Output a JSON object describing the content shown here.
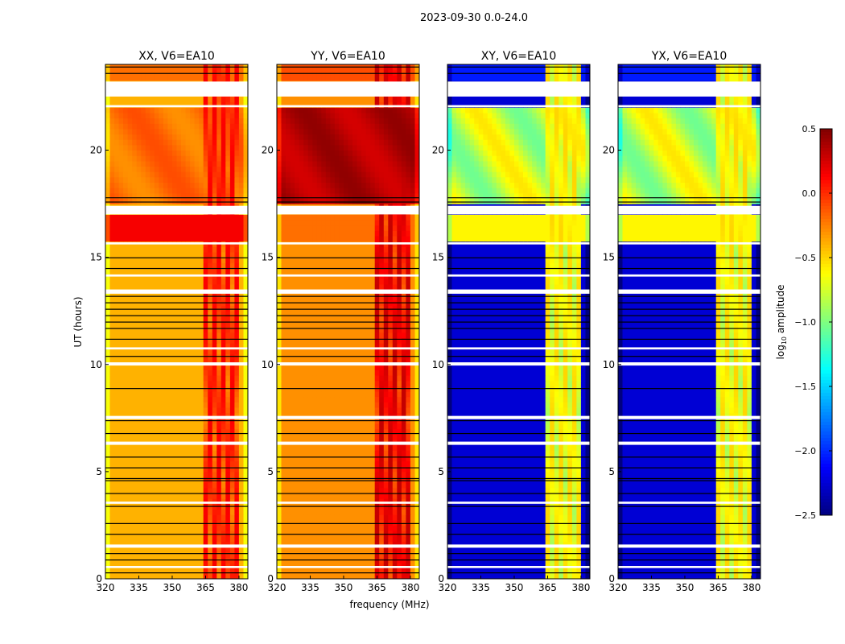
{
  "chart_data": {
    "type": "heatmap",
    "title": "2023-09-30 0.0-24.0",
    "xlabel": "frequency (MHz)",
    "ylabel": "UT (hours)",
    "xlim": [
      320,
      384
    ],
    "ylim": [
      0,
      24
    ],
    "xticks": [
      "320",
      "335",
      "350",
      "365",
      "380"
    ],
    "yticks": [
      "0",
      "5",
      "10",
      "15",
      "20"
    ],
    "colorbar": {
      "label_main": "log",
      "label_sub": "10",
      "label_rest": " amplitude",
      "range": [
        -2.5,
        0.5
      ],
      "ticks": [
        "0.5",
        "0.0",
        "−0.5",
        "−1.0",
        "−1.5",
        "−2.0",
        "−2.5"
      ],
      "colormap": "jet"
    },
    "flagged_hours_white": [
      [
        0.5,
        0.6
      ],
      [
        1.45,
        1.6
      ],
      [
        3.5,
        3.6
      ],
      [
        6.25,
        6.4
      ],
      [
        7.45,
        7.6
      ],
      [
        9.95,
        10.1
      ],
      [
        10.7,
        10.8
      ],
      [
        13.3,
        13.5
      ],
      [
        14.1,
        14.2
      ],
      [
        15.6,
        15.7
      ],
      [
        17.0,
        17.4
      ],
      [
        22.0,
        22.1
      ],
      [
        22.5,
        23.2
      ]
    ],
    "flagged_hours_black": [
      0.3,
      0.9,
      1.2,
      2.1,
      2.6,
      3.4,
      4.0,
      4.6,
      4.7,
      5.2,
      5.7,
      6.8,
      7.4,
      8.9,
      10.4,
      11.2,
      11.7,
      12.0,
      12.3,
      12.6,
      12.9,
      13.2,
      14.5,
      15.0,
      17.6,
      17.8,
      23.6,
      23.9
    ],
    "rfi_band_mhz": [
      363,
      380
    ],
    "panels": [
      {
        "title": "XX, V6=EA10",
        "base": -0.4,
        "band": 0.1,
        "day_segment": {
          "from": 15.7,
          "to": 17.0,
          "value": 0.15
        },
        "night_segment": {
          "from": 17.5,
          "to": 22.0,
          "value": -0.2
        }
      },
      {
        "title": "YY, V6=EA10",
        "base": -0.3,
        "band": 0.15,
        "day_segment": {
          "from": 15.7,
          "to": 17.0,
          "value": -0.2
        },
        "night_segment": {
          "from": 17.5,
          "to": 22.0,
          "value": 0.35
        }
      },
      {
        "title": "XY, V6=EA10",
        "base": -2.25,
        "band": -0.9,
        "day_segment": {
          "from": 15.7,
          "to": 17.0,
          "value": -0.6
        },
        "night_segment": {
          "from": 17.5,
          "to": 22.0,
          "value": -0.8
        }
      },
      {
        "title": "YX, V6=EA10",
        "base": -2.25,
        "band": -0.9,
        "day_segment": {
          "from": 15.7,
          "to": 17.0,
          "value": -0.6
        },
        "night_segment": {
          "from": 17.5,
          "to": 22.0,
          "value": -0.8
        }
      }
    ]
  }
}
